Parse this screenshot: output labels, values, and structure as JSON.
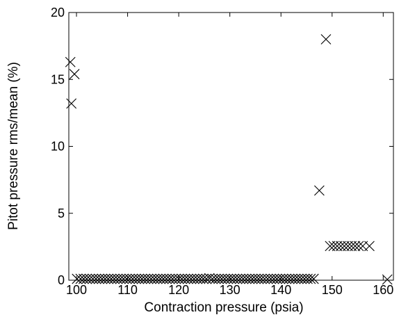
{
  "chart_data": {
    "type": "scatter",
    "title": "",
    "xlabel": "Contraction pressure (psia)",
    "ylabel": "Pitot pressure rms/mean (%)",
    "xlim": [
      98.5,
      162
    ],
    "ylim": [
      0,
      20
    ],
    "xticks": [
      100,
      110,
      120,
      130,
      140,
      150,
      160
    ],
    "yticks": [
      0,
      5,
      10,
      15,
      20
    ],
    "xtick_labels": [
      "100",
      "110",
      "120",
      "130",
      "140",
      "150",
      "160"
    ],
    "ytick_labels": [
      "0",
      "5",
      "10",
      "15",
      "20"
    ],
    "grid": false,
    "legend": false,
    "marker": "x",
    "series": [
      {
        "color": "#000000",
        "points": [
          [
            98.8,
            16.3
          ],
          [
            99.0,
            13.2
          ],
          [
            99.6,
            15.4
          ],
          [
            100.1,
            0.1
          ],
          [
            100.8,
            0.1
          ],
          [
            101.4,
            0.1
          ],
          [
            102.0,
            0.1
          ],
          [
            102.6,
            0.1
          ],
          [
            103.2,
            0.1
          ],
          [
            103.8,
            0.1
          ],
          [
            104.4,
            0.1
          ],
          [
            105.0,
            0.1
          ],
          [
            105.6,
            0.1
          ],
          [
            106.2,
            0.1
          ],
          [
            106.8,
            0.1
          ],
          [
            107.4,
            0.1
          ],
          [
            108.0,
            0.1
          ],
          [
            108.6,
            0.1
          ],
          [
            109.2,
            0.1
          ],
          [
            109.8,
            0.1
          ],
          [
            110.4,
            0.1
          ],
          [
            111.0,
            0.1
          ],
          [
            111.6,
            0.1
          ],
          [
            112.2,
            0.1
          ],
          [
            112.8,
            0.1
          ],
          [
            113.4,
            0.1
          ],
          [
            114.0,
            0.1
          ],
          [
            114.6,
            0.1
          ],
          [
            115.2,
            0.1
          ],
          [
            115.8,
            0.1
          ],
          [
            116.4,
            0.1
          ],
          [
            117.0,
            0.1
          ],
          [
            117.6,
            0.1
          ],
          [
            118.2,
            0.1
          ],
          [
            118.8,
            0.1
          ],
          [
            119.4,
            0.1
          ],
          [
            120.0,
            0.1
          ],
          [
            120.6,
            0.1
          ],
          [
            121.2,
            0.1
          ],
          [
            121.8,
            0.1
          ],
          [
            122.4,
            0.1
          ],
          [
            123.0,
            0.1
          ],
          [
            123.6,
            0.1
          ],
          [
            124.2,
            0.1
          ],
          [
            124.8,
            0.1
          ],
          [
            125.4,
            0.1
          ],
          [
            126.0,
            0.15
          ],
          [
            126.6,
            0.1
          ],
          [
            127.2,
            0.1
          ],
          [
            127.8,
            0.1
          ],
          [
            128.4,
            0.1
          ],
          [
            129.0,
            0.1
          ],
          [
            129.6,
            0.1
          ],
          [
            130.2,
            0.1
          ],
          [
            130.8,
            0.1
          ],
          [
            131.4,
            0.1
          ],
          [
            132.0,
            0.1
          ],
          [
            132.6,
            0.1
          ],
          [
            133.2,
            0.1
          ],
          [
            133.8,
            0.1
          ],
          [
            134.4,
            0.1
          ],
          [
            135.0,
            0.1
          ],
          [
            135.6,
            0.1
          ],
          [
            136.2,
            0.1
          ],
          [
            136.8,
            0.1
          ],
          [
            137.4,
            0.1
          ],
          [
            138.0,
            0.1
          ],
          [
            138.6,
            0.1
          ],
          [
            139.2,
            0.1
          ],
          [
            139.8,
            0.1
          ],
          [
            140.4,
            0.1
          ],
          [
            141.0,
            0.1
          ],
          [
            141.6,
            0.1
          ],
          [
            142.2,
            0.1
          ],
          [
            142.8,
            0.1
          ],
          [
            143.4,
            0.1
          ],
          [
            144.0,
            0.1
          ],
          [
            144.6,
            0.1
          ],
          [
            145.2,
            0.1
          ],
          [
            145.8,
            0.1
          ],
          [
            146.4,
            0.1
          ],
          [
            147.5,
            6.7
          ],
          [
            148.8,
            18.0
          ],
          [
            149.6,
            2.55
          ],
          [
            150.3,
            2.55
          ],
          [
            151.0,
            2.55
          ],
          [
            151.7,
            2.55
          ],
          [
            152.4,
            2.55
          ],
          [
            153.1,
            2.55
          ],
          [
            153.8,
            2.55
          ],
          [
            154.5,
            2.55
          ],
          [
            155.2,
            2.55
          ],
          [
            156.0,
            2.55
          ],
          [
            157.3,
            2.55
          ],
          [
            160.8,
            0.05
          ]
        ]
      }
    ]
  }
}
